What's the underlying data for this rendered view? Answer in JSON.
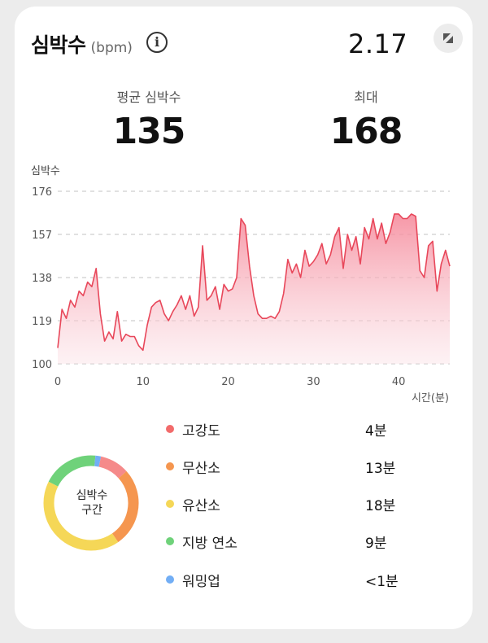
{
  "header": {
    "title": "심박수",
    "unit": "(bpm)",
    "date": "2.17"
  },
  "stats": {
    "average": {
      "label": "평균 심박수",
      "value": "135"
    },
    "max": {
      "label": "최대",
      "value": "168"
    }
  },
  "chart_data": {
    "type": "area",
    "ylabel": "심박수",
    "xlabel": "시간(분)",
    "y_ticks": [
      176,
      157,
      138,
      119,
      100
    ],
    "x_ticks": [
      0,
      10,
      20,
      30,
      40
    ],
    "xlim": [
      0,
      46
    ],
    "ylim": [
      100,
      176
    ],
    "grid": true,
    "color": "#e8475a",
    "series": [
      {
        "x": [
          0,
          0.5,
          1,
          1.5,
          2,
          2.5,
          3,
          3.5,
          4,
          4.5,
          5,
          5.5,
          6,
          6.5,
          7,
          7.5,
          8,
          8.5,
          9,
          9.5,
          10,
          10.5,
          11,
          11.5,
          12,
          12.5,
          13,
          13.5,
          14,
          14.5,
          15,
          15.5,
          16,
          16.5,
          17,
          17.5,
          18,
          18.5,
          19,
          19.5,
          20,
          20.5,
          21,
          21.5,
          22,
          22.5,
          23,
          23.5,
          24,
          24.5,
          25,
          25.5,
          26,
          26.5,
          27,
          27.5,
          28,
          28.5,
          29,
          29.5,
          30,
          30.5,
          31,
          31.5,
          32,
          32.5,
          33,
          33.5,
          34,
          34.5,
          35,
          35.5,
          36,
          36.5,
          37,
          37.5,
          38,
          38.5,
          39,
          39.5,
          40,
          40.5,
          41,
          41.5,
          42,
          42.5,
          43,
          43.5,
          44,
          44.5,
          45,
          45.5,
          46
        ],
        "y": [
          107,
          124,
          120,
          128,
          125,
          132,
          130,
          136,
          134,
          142,
          122,
          110,
          114,
          111,
          123,
          110,
          113,
          112,
          112,
          108,
          106,
          117,
          125,
          127,
          128,
          122,
          119,
          123,
          126,
          130,
          124,
          130,
          121,
          125,
          152,
          128,
          130,
          134,
          124,
          135,
          132,
          133,
          138,
          164,
          161,
          143,
          130,
          122,
          120,
          120,
          121,
          120,
          123,
          131,
          146,
          140,
          144,
          138,
          150,
          143,
          145,
          148,
          153,
          144,
          148,
          156,
          160,
          142,
          157,
          150,
          156,
          144,
          160,
          155,
          164,
          155,
          162,
          153,
          158,
          166,
          166,
          164,
          164,
          166,
          165,
          141,
          138,
          152,
          154,
          132,
          144,
          150,
          143
        ]
      }
    ]
  },
  "zones": {
    "center_label": [
      "심박수",
      "구간"
    ],
    "items": [
      {
        "name": "고강도",
        "time": "4분",
        "color": "#f26b6b"
      },
      {
        "name": "무산소",
        "time": "13분",
        "color": "#f5964f"
      },
      {
        "name": "유산소",
        "time": "18분",
        "color": "#f5d757"
      },
      {
        "name": "지방 연소",
        "time": "9분",
        "color": "#6fd27a"
      },
      {
        "name": "워밍업",
        "time": "<1분",
        "color": "#72aef5"
      }
    ]
  }
}
